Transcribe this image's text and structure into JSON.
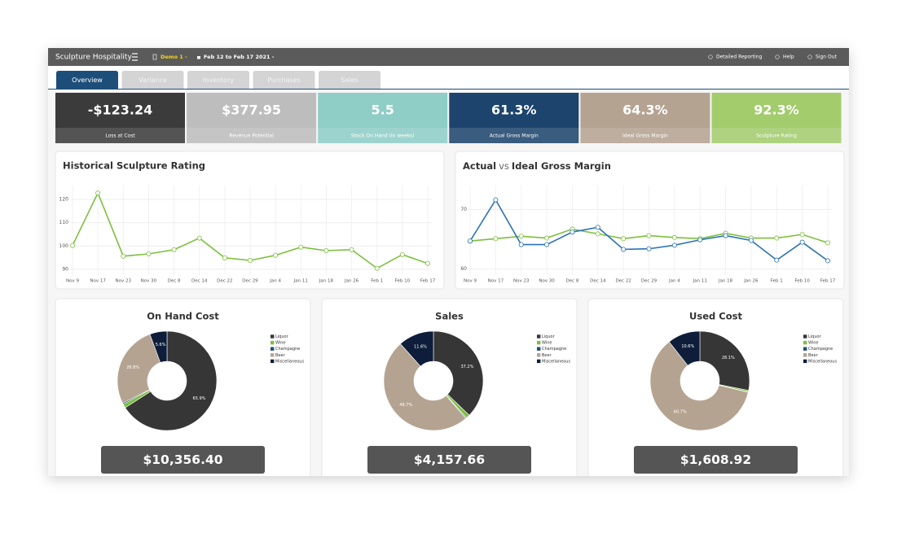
{
  "header": {
    "brand": "Sculpture Hospitality",
    "account": "Demo 1 -",
    "date_range": "Feb 12 to Feb 17 2021 -",
    "links": [
      "Detailed Reporting",
      "Help",
      "Sign Out"
    ]
  },
  "tabs": [
    "Overview",
    "Variance",
    "Inventory",
    "Purchases",
    "Sales"
  ],
  "kpis": [
    {
      "value": "-$123.24",
      "label": "Loss at Cost",
      "color": "#3b3b3b"
    },
    {
      "value": "$377.95",
      "label": "Revenue Potential",
      "color": "#bdbdbd"
    },
    {
      "value": "5.5",
      "label": "Stock On Hand (in weeks)",
      "color": "#8fcdc7"
    },
    {
      "value": "61.3%",
      "label": "Actual Gross Margin",
      "color": "#1c446d"
    },
    {
      "value": "64.3%",
      "label": "Ideal Gross Margin",
      "color": "#b5a391"
    },
    {
      "value": "92.3%",
      "label": "Sculpture Rating",
      "color": "#a3cc6d"
    }
  ],
  "chart_data": [
    {
      "type": "line",
      "title": "Historical Sculpture Rating",
      "categories": [
        "Nov 9",
        "Nov 17",
        "Nov 23",
        "Nov 30",
        "Dec 8",
        "Dec 14",
        "Dec 22",
        "Dec 29",
        "Jan 4",
        "Jan 11",
        "Jan 18",
        "Jan 26",
        "Feb 1",
        "Feb 10",
        "Feb 17"
      ],
      "series": [
        {
          "color": "#7dbf3e",
          "values": [
            100.2,
            122.8,
            95.6,
            96.6,
            98.4,
            103.4,
            94.9,
            93.8,
            96,
            99.5,
            98,
            98.4,
            90.4,
            96.3,
            92.5
          ]
        }
      ],
      "ylim": [
        87.5,
        126
      ],
      "yticks": [
        90,
        100,
        110,
        120
      ],
      "grid": true
    },
    {
      "type": "line",
      "title": [
        "Actual",
        "vs",
        "Ideal Gross Margin"
      ],
      "categories": [
        "Nov 9",
        "Nov 17",
        "Nov 23",
        "Nov 30",
        "Dec 8",
        "Dec 14",
        "Dec 22",
        "Dec 29",
        "Jan 4",
        "Jan 11",
        "Jan 18",
        "Jan 26",
        "Feb 1",
        "Feb 10",
        "Feb 17"
      ],
      "series": [
        {
          "color": "#7dbf3e",
          "values": [
            64.7,
            65.1,
            65.5,
            65.2,
            66.7,
            65.9,
            65.1,
            65.6,
            65.3,
            65.1,
            66.0,
            65.2,
            65.2,
            65.8,
            64.4
          ]
        },
        {
          "color": "#2b73b6",
          "values": [
            64.7,
            71.6,
            64.1,
            64.1,
            66.2,
            67.0,
            63.3,
            63.4,
            64.0,
            64.9,
            65.6,
            64.8,
            61.5,
            64.5,
            61.4
          ]
        }
      ],
      "ylim": [
        59,
        74
      ],
      "yticks": [
        60,
        70
      ],
      "grid": true
    },
    {
      "type": "pie",
      "title": "On Hand Cost",
      "categories": [
        "Liquor",
        "Wine",
        "Champagne",
        "Beer",
        "Miscellaneous"
      ],
      "values": [
        65.9,
        1.3,
        0.4,
        26.8,
        5.6
      ],
      "value_labels": [
        "65.9%",
        null,
        null,
        "26.8%",
        "5.6%"
      ],
      "colors": [
        "#363636",
        "#7dbf3e",
        "#1f4e7a",
        "#b5a391",
        "#0e1d3a"
      ],
      "total": "$10,356.40"
    },
    {
      "type": "pie",
      "title": "Sales",
      "categories": [
        "Liquor",
        "Wine",
        "Champagne",
        "Beer",
        "Miscellaneous"
      ],
      "values": [
        37.2,
        1.2,
        0.3,
        49.7,
        11.6
      ],
      "value_labels": [
        "37.2%",
        null,
        null,
        "49.7%",
        "11.6%"
      ],
      "colors": [
        "#363636",
        "#7dbf3e",
        "#1f4e7a",
        "#b5a391",
        "#0e1d3a"
      ],
      "total": "$4,157.66"
    },
    {
      "type": "pie",
      "title": "Used Cost",
      "categories": [
        "Liquor",
        "Wine",
        "Champagne",
        "Beer",
        "Miscellaneous"
      ],
      "values": [
        28.1,
        0.5,
        0.1,
        60.7,
        10.6
      ],
      "value_labels": [
        "28.1%",
        null,
        null,
        "60.7%",
        "10.6%"
      ],
      "colors": [
        "#363636",
        "#7dbf3e",
        "#1f4e7a",
        "#b5a391",
        "#0e1d3a"
      ],
      "total": "$1,608.92"
    }
  ]
}
